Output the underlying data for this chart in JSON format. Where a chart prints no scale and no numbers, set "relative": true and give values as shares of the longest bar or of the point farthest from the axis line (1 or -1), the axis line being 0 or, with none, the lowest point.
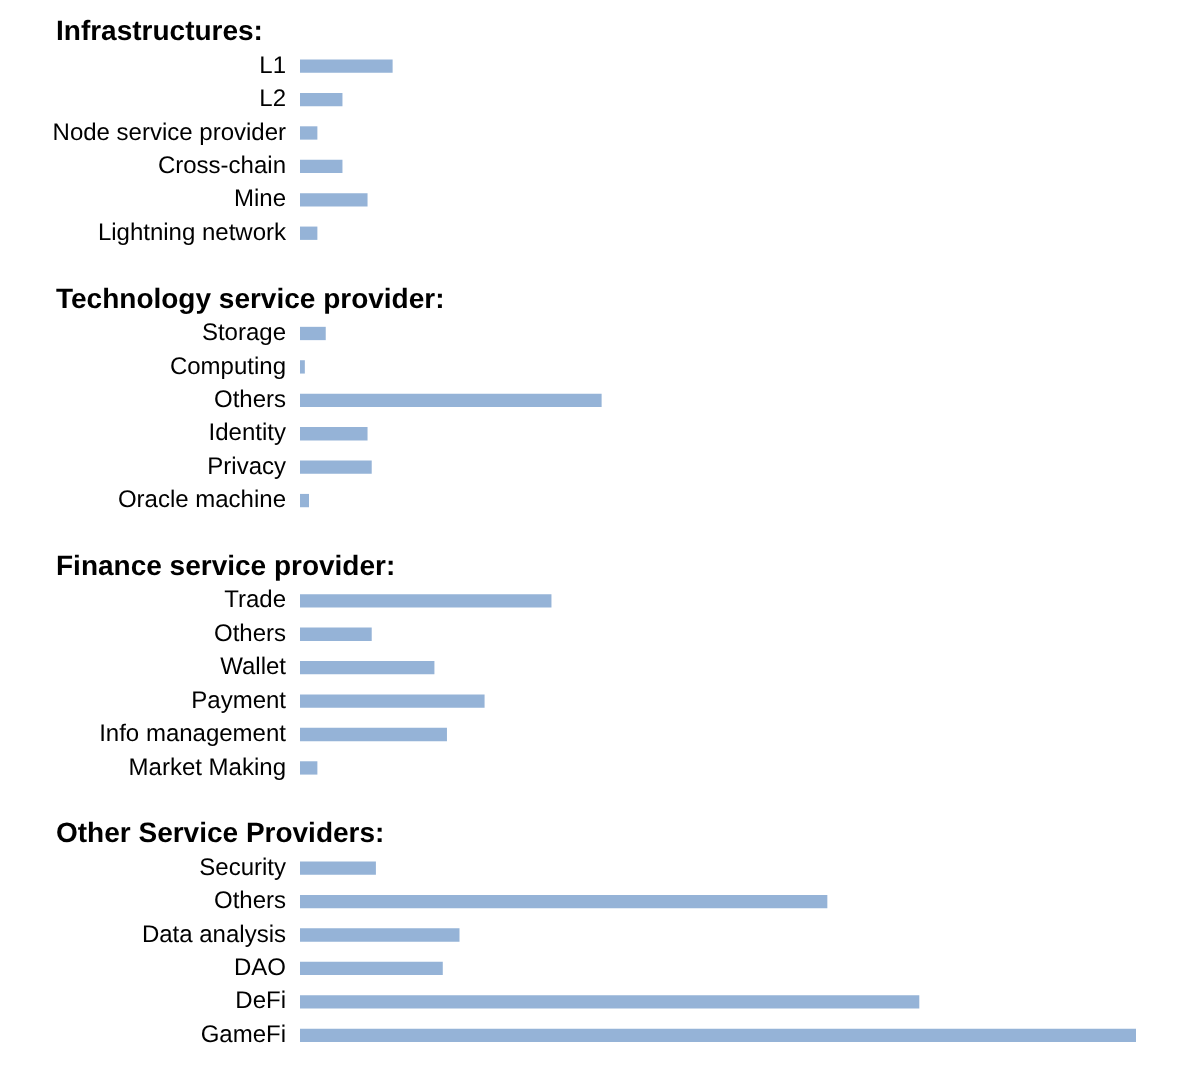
{
  "chart_data": {
    "type": "bar",
    "orientation": "horizontal",
    "relative": true,
    "color": "#95b3d7",
    "annotations": [
      "Infrastructures:",
      "Technology service provider:",
      "Finance service provider:",
      "Other Service Providers:"
    ],
    "categories": [
      null,
      "L1",
      "L2",
      "Node service provider",
      "Cross-chain",
      "Mine",
      "Lightning network",
      null,
      null,
      "Storage",
      "Computing",
      "Others",
      "Identity",
      "Privacy",
      "Oracle machine",
      null,
      null,
      "Trade",
      "Others",
      "Wallet",
      "Payment",
      "Info management",
      "Market Making",
      null,
      null,
      "Security",
      "Others",
      "Data analysis",
      "DAO",
      "DeFi",
      "GameFi"
    ],
    "values": [
      null,
      0.11,
      0.05,
      0.02,
      0.05,
      0.08,
      0.02,
      null,
      null,
      0.03,
      0.005,
      0.36,
      0.08,
      0.085,
      0.01,
      null,
      null,
      0.3,
      0.085,
      0.16,
      0.22,
      0.175,
      0.02,
      null,
      null,
      0.09,
      0.63,
      0.19,
      0.17,
      0.74,
      1
    ]
  }
}
